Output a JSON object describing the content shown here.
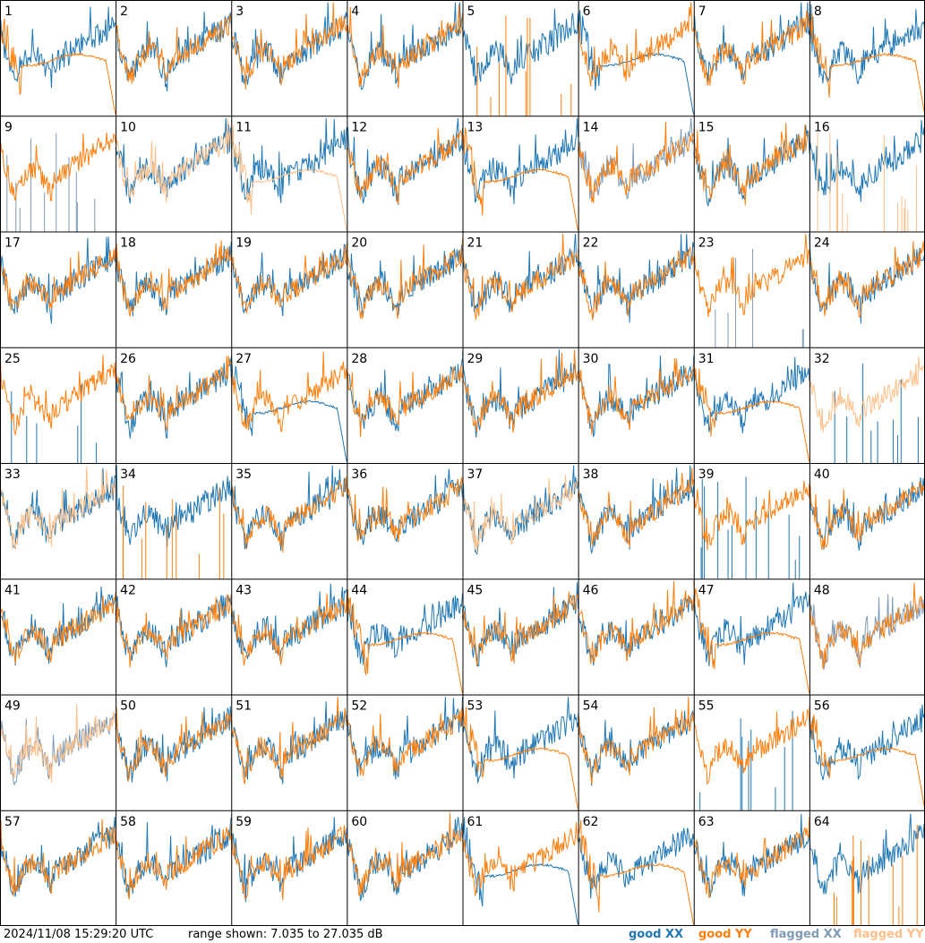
{
  "footer": {
    "timestamp": "2024/11/08 15:29:20 UTC",
    "range_text": "range shown: 7.035 to 27.035 dB",
    "legend": [
      "good XX",
      "good YY",
      "flagged XX",
      "flagged YY"
    ]
  },
  "colors": {
    "good_xx": "#1f77b4",
    "good_yy": "#ff7f0e",
    "flagged_xx": "#7f9bb6",
    "flagged_yy": "#ffc08a",
    "grid": "#000000"
  },
  "chart_data": {
    "type": "line",
    "description_units": "dB",
    "y_range": [
      7.035,
      27.035
    ],
    "rows": 8,
    "cols": 8,
    "series_names": [
      "good XX",
      "good YY",
      "flagged XX",
      "flagged YY"
    ],
    "panels": [
      {
        "id": 1,
        "xx": {
          "kind": "normal",
          "flag": false
        },
        "yy": {
          "kind": "dip",
          "flag": false
        }
      },
      {
        "id": 2,
        "xx": {
          "kind": "normal",
          "flag": false
        },
        "yy": {
          "kind": "normal",
          "flag": false
        }
      },
      {
        "id": 3,
        "xx": {
          "kind": "normal",
          "flag": false
        },
        "yy": {
          "kind": "normal",
          "flag": false
        }
      },
      {
        "id": 4,
        "xx": {
          "kind": "normal",
          "flag": false
        },
        "yy": {
          "kind": "normal",
          "flag": false
        }
      },
      {
        "id": 5,
        "xx": {
          "kind": "normal",
          "flag": false
        },
        "yy": {
          "kind": "spikes",
          "flag": false
        }
      },
      {
        "id": 6,
        "xx": {
          "kind": "dip",
          "flag": false
        },
        "yy": {
          "kind": "normal",
          "flag": false
        }
      },
      {
        "id": 7,
        "xx": {
          "kind": "normal",
          "flag": false
        },
        "yy": {
          "kind": "normal",
          "flag": false
        }
      },
      {
        "id": 8,
        "xx": {
          "kind": "normal",
          "flag": false
        },
        "yy": {
          "kind": "dip",
          "flag": false
        }
      },
      {
        "id": 9,
        "xx": {
          "kind": "spikes",
          "flag": true
        },
        "yy": {
          "kind": "normal",
          "flag": false
        }
      },
      {
        "id": 10,
        "xx": {
          "kind": "normal",
          "flag": false
        },
        "yy": {
          "kind": "normal",
          "flag": true
        }
      },
      {
        "id": 11,
        "xx": {
          "kind": "normal",
          "flag": false
        },
        "yy": {
          "kind": "dip",
          "flag": true
        }
      },
      {
        "id": 12,
        "xx": {
          "kind": "normal",
          "flag": false
        },
        "yy": {
          "kind": "normal",
          "flag": false
        }
      },
      {
        "id": 13,
        "xx": {
          "kind": "normal",
          "flag": false
        },
        "yy": {
          "kind": "dip",
          "flag": false
        }
      },
      {
        "id": 14,
        "xx": {
          "kind": "normal",
          "flag": true
        },
        "yy": {
          "kind": "normal",
          "flag": false
        }
      },
      {
        "id": 15,
        "xx": {
          "kind": "normal",
          "flag": false
        },
        "yy": {
          "kind": "normal",
          "flag": false
        }
      },
      {
        "id": 16,
        "xx": {
          "kind": "normal",
          "flag": false
        },
        "yy": {
          "kind": "spikes",
          "flag": true
        }
      },
      {
        "id": 17,
        "xx": {
          "kind": "normal",
          "flag": false
        },
        "yy": {
          "kind": "normal",
          "flag": false
        }
      },
      {
        "id": 18,
        "xx": {
          "kind": "normal",
          "flag": false
        },
        "yy": {
          "kind": "normal",
          "flag": false
        }
      },
      {
        "id": 19,
        "xx": {
          "kind": "normal",
          "flag": false
        },
        "yy": {
          "kind": "normal",
          "flag": false
        }
      },
      {
        "id": 20,
        "xx": {
          "kind": "normal",
          "flag": false
        },
        "yy": {
          "kind": "normal",
          "flag": false
        }
      },
      {
        "id": 21,
        "xx": {
          "kind": "normal",
          "flag": false
        },
        "yy": {
          "kind": "normal",
          "flag": false
        }
      },
      {
        "id": 22,
        "xx": {
          "kind": "normal",
          "flag": false
        },
        "yy": {
          "kind": "normal",
          "flag": false
        }
      },
      {
        "id": 23,
        "xx": {
          "kind": "spikes",
          "flag": true
        },
        "yy": {
          "kind": "normal",
          "flag": false
        }
      },
      {
        "id": 24,
        "xx": {
          "kind": "normal",
          "flag": false
        },
        "yy": {
          "kind": "normal",
          "flag": false
        }
      },
      {
        "id": 25,
        "xx": {
          "kind": "spikes",
          "flag": false
        },
        "yy": {
          "kind": "normal",
          "flag": false
        }
      },
      {
        "id": 26,
        "xx": {
          "kind": "normal",
          "flag": false
        },
        "yy": {
          "kind": "normal",
          "flag": false
        }
      },
      {
        "id": 27,
        "xx": {
          "kind": "dip",
          "flag": false
        },
        "yy": {
          "kind": "normal",
          "flag": false
        }
      },
      {
        "id": 28,
        "xx": {
          "kind": "normal",
          "flag": false
        },
        "yy": {
          "kind": "normal",
          "flag": false
        }
      },
      {
        "id": 29,
        "xx": {
          "kind": "normal",
          "flag": false
        },
        "yy": {
          "kind": "normal",
          "flag": false
        }
      },
      {
        "id": 30,
        "xx": {
          "kind": "normal",
          "flag": false
        },
        "yy": {
          "kind": "normal",
          "flag": false
        }
      },
      {
        "id": 31,
        "xx": {
          "kind": "normal",
          "flag": false
        },
        "yy": {
          "kind": "dip",
          "flag": false
        }
      },
      {
        "id": 32,
        "xx": {
          "kind": "spikes",
          "flag": false
        },
        "yy": {
          "kind": "normal",
          "flag": true
        }
      },
      {
        "id": 33,
        "xx": {
          "kind": "normal",
          "flag": false
        },
        "yy": {
          "kind": "normal",
          "flag": true
        }
      },
      {
        "id": 34,
        "xx": {
          "kind": "normal",
          "flag": false
        },
        "yy": {
          "kind": "spikes",
          "flag": false
        }
      },
      {
        "id": 35,
        "xx": {
          "kind": "normal",
          "flag": false
        },
        "yy": {
          "kind": "normal",
          "flag": false
        }
      },
      {
        "id": 36,
        "xx": {
          "kind": "normal",
          "flag": false
        },
        "yy": {
          "kind": "normal",
          "flag": false
        }
      },
      {
        "id": 37,
        "xx": {
          "kind": "normal",
          "flag": false
        },
        "yy": {
          "kind": "normal",
          "flag": true
        }
      },
      {
        "id": 38,
        "xx": {
          "kind": "normal",
          "flag": false
        },
        "yy": {
          "kind": "normal",
          "flag": false
        }
      },
      {
        "id": 39,
        "xx": {
          "kind": "spikes",
          "flag": false
        },
        "yy": {
          "kind": "normal",
          "flag": false
        }
      },
      {
        "id": 40,
        "xx": {
          "kind": "normal",
          "flag": false
        },
        "yy": {
          "kind": "normal",
          "flag": false
        }
      },
      {
        "id": 41,
        "xx": {
          "kind": "normal",
          "flag": false
        },
        "yy": {
          "kind": "normal",
          "flag": false
        }
      },
      {
        "id": 42,
        "xx": {
          "kind": "normal",
          "flag": false
        },
        "yy": {
          "kind": "normal",
          "flag": false
        }
      },
      {
        "id": 43,
        "xx": {
          "kind": "normal",
          "flag": false
        },
        "yy": {
          "kind": "normal",
          "flag": false
        }
      },
      {
        "id": 44,
        "xx": {
          "kind": "normal",
          "flag": false
        },
        "yy": {
          "kind": "dip",
          "flag": false
        }
      },
      {
        "id": 45,
        "xx": {
          "kind": "normal",
          "flag": false
        },
        "yy": {
          "kind": "normal",
          "flag": false
        }
      },
      {
        "id": 46,
        "xx": {
          "kind": "normal",
          "flag": false
        },
        "yy": {
          "kind": "normal",
          "flag": false
        }
      },
      {
        "id": 47,
        "xx": {
          "kind": "normal",
          "flag": false
        },
        "yy": {
          "kind": "dip",
          "flag": false
        }
      },
      {
        "id": 48,
        "xx": {
          "kind": "normal",
          "flag": true
        },
        "yy": {
          "kind": "normal",
          "flag": false
        }
      },
      {
        "id": 49,
        "xx": {
          "kind": "normal",
          "flag": true
        },
        "yy": {
          "kind": "normal",
          "flag": true
        }
      },
      {
        "id": 50,
        "xx": {
          "kind": "normal",
          "flag": false
        },
        "yy": {
          "kind": "normal",
          "flag": false
        }
      },
      {
        "id": 51,
        "xx": {
          "kind": "normal",
          "flag": false
        },
        "yy": {
          "kind": "normal",
          "flag": false
        }
      },
      {
        "id": 52,
        "xx": {
          "kind": "normal",
          "flag": false
        },
        "yy": {
          "kind": "normal",
          "flag": false
        }
      },
      {
        "id": 53,
        "xx": {
          "kind": "normal",
          "flag": false
        },
        "yy": {
          "kind": "dip",
          "flag": false
        }
      },
      {
        "id": 54,
        "xx": {
          "kind": "normal",
          "flag": false
        },
        "yy": {
          "kind": "normal",
          "flag": false
        }
      },
      {
        "id": 55,
        "xx": {
          "kind": "spikes",
          "flag": false
        },
        "yy": {
          "kind": "normal",
          "flag": false
        }
      },
      {
        "id": 56,
        "xx": {
          "kind": "normal",
          "flag": false
        },
        "yy": {
          "kind": "dip",
          "flag": false
        }
      },
      {
        "id": 57,
        "xx": {
          "kind": "normal",
          "flag": false
        },
        "yy": {
          "kind": "normal",
          "flag": false
        }
      },
      {
        "id": 58,
        "xx": {
          "kind": "normal",
          "flag": false
        },
        "yy": {
          "kind": "normal",
          "flag": false
        }
      },
      {
        "id": 59,
        "xx": {
          "kind": "normal",
          "flag": false
        },
        "yy": {
          "kind": "normal",
          "flag": false
        }
      },
      {
        "id": 60,
        "xx": {
          "kind": "normal",
          "flag": false
        },
        "yy": {
          "kind": "normal",
          "flag": false
        }
      },
      {
        "id": 61,
        "xx": {
          "kind": "dip",
          "flag": false
        },
        "yy": {
          "kind": "normal",
          "flag": false
        }
      },
      {
        "id": 62,
        "xx": {
          "kind": "normal",
          "flag": false
        },
        "yy": {
          "kind": "dip",
          "flag": false
        }
      },
      {
        "id": 63,
        "xx": {
          "kind": "normal",
          "flag": false
        },
        "yy": {
          "kind": "normal",
          "flag": false
        }
      },
      {
        "id": 64,
        "xx": {
          "kind": "normal",
          "flag": false
        },
        "yy": {
          "kind": "spikes",
          "flag": false
        }
      }
    ]
  }
}
